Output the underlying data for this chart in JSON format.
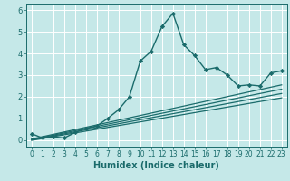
{
  "xlabel": "Humidex (Indice chaleur)",
  "background_color": "#c5e8e8",
  "grid_color": "#ffffff",
  "line_color": "#1a6b6b",
  "xlim": [
    -0.5,
    23.5
  ],
  "ylim": [
    -0.3,
    6.3
  ],
  "xticks": [
    0,
    1,
    2,
    3,
    4,
    5,
    6,
    7,
    8,
    9,
    10,
    11,
    12,
    13,
    14,
    15,
    16,
    17,
    18,
    19,
    20,
    21,
    22,
    23
  ],
  "yticks": [
    0,
    1,
    2,
    3,
    4,
    5,
    6
  ],
  "main_x": [
    0,
    1,
    2,
    3,
    4,
    5,
    6,
    7,
    8,
    9,
    10,
    11,
    12,
    13,
    14,
    15,
    16,
    17,
    18,
    19,
    20,
    21,
    22,
    23
  ],
  "main_y": [
    0.3,
    0.1,
    0.15,
    0.1,
    0.35,
    0.55,
    0.65,
    1.0,
    1.4,
    2.0,
    3.65,
    4.1,
    5.25,
    5.85,
    4.4,
    3.9,
    3.25,
    3.35,
    3.0,
    2.5,
    2.55,
    2.5,
    3.1,
    3.2
  ],
  "line2_x": [
    0,
    23
  ],
  "line2_y": [
    0.05,
    2.55
  ],
  "line3_x": [
    0,
    23
  ],
  "line3_y": [
    0.03,
    2.35
  ],
  "line4_x": [
    0,
    23
  ],
  "line4_y": [
    0.01,
    2.15
  ],
  "line5_x": [
    0,
    23
  ],
  "line5_y": [
    -0.01,
    1.95
  ]
}
